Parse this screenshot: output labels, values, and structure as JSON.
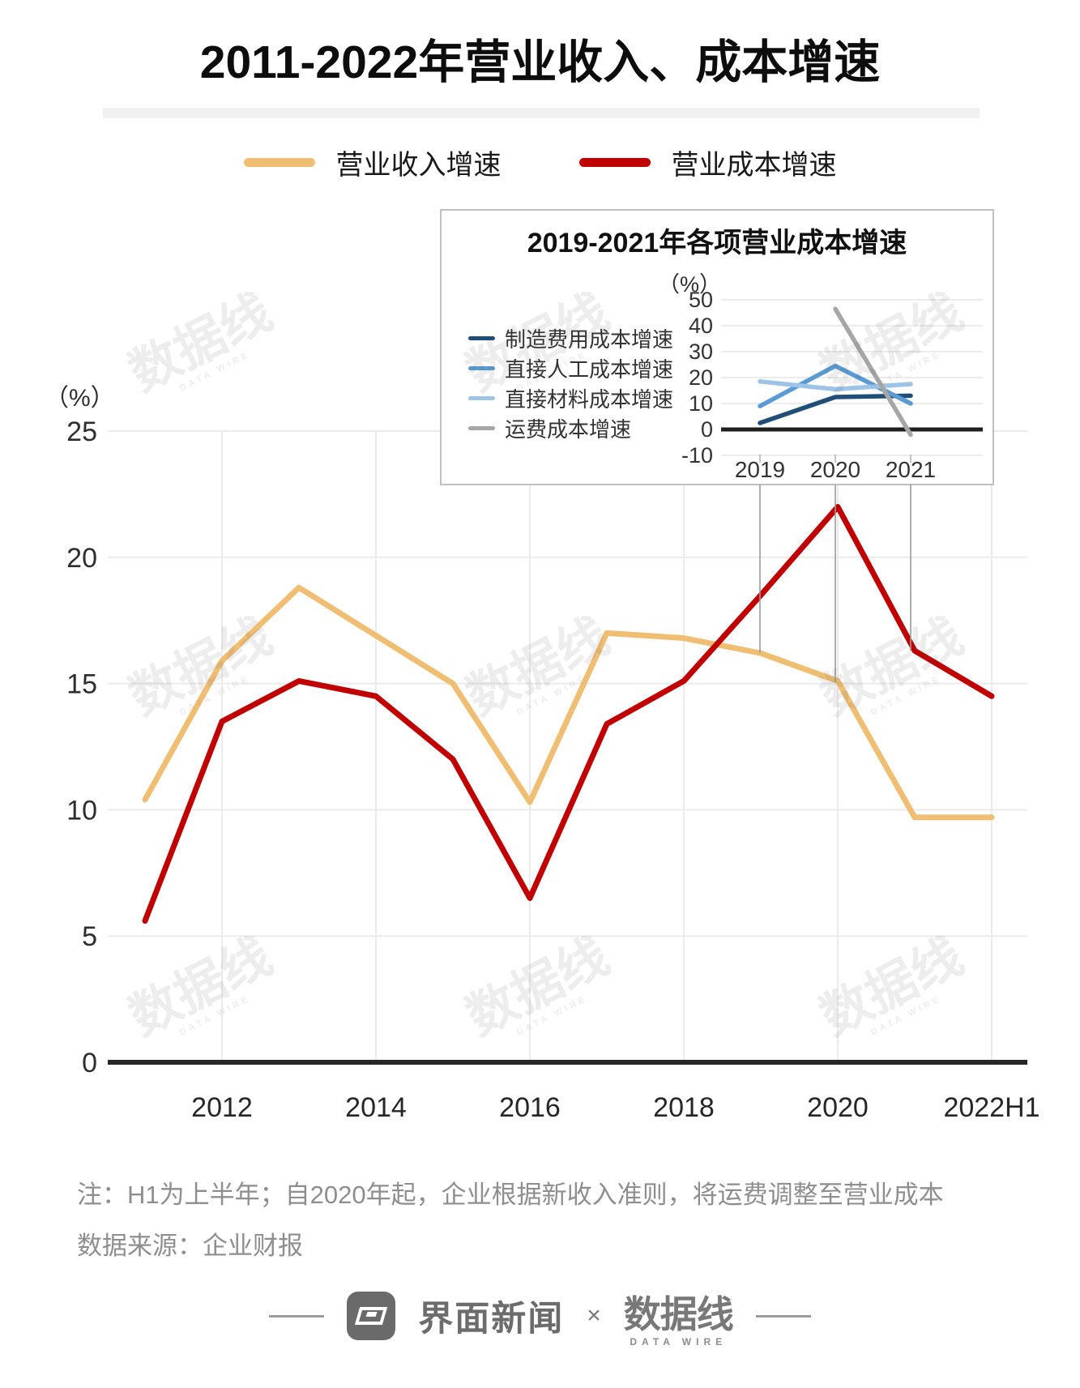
{
  "page": {
    "title": "2011-2022年营业收入、成本增速"
  },
  "main_legend": [
    {
      "label": "营业收入增速",
      "color": "#F0BE73"
    },
    {
      "label": "营业成本增速",
      "color": "#C00000"
    }
  ],
  "notes": {
    "line1": "注：H1为上半年；自2020年起，企业根据新收入准则，将运费调整至营业成本",
    "line2": "数据来源：企业财报"
  },
  "footer": {
    "brand1": "界面新闻",
    "separator": "×",
    "brand2": "数据线",
    "brand2_caption": "DATA WIRE"
  },
  "watermark": {
    "text": "数据线",
    "caption": "DATA WIRE"
  },
  "chart_data": [
    {
      "id": "main",
      "type": "line",
      "title": "2011-2022年营业收入、成本增速",
      "unit_label": "（%）",
      "categories": [
        "2011",
        "2012",
        "2013",
        "2014",
        "2015",
        "2016",
        "2017",
        "2018",
        "2019",
        "2020",
        "2021",
        "2022H1"
      ],
      "xtick_labels": [
        "2012",
        "2014",
        "2016",
        "2018",
        "2020",
        "2022H1"
      ],
      "yticks": [
        0,
        5,
        10,
        15,
        20,
        25
      ],
      "ylim": [
        0,
        25
      ],
      "grid": true,
      "legend_position": "top",
      "series": [
        {
          "name": "营业收入增速",
          "color": "#F0BE73",
          "values": [
            10.4,
            15.9,
            18.8,
            16.9,
            15.0,
            10.3,
            17.0,
            16.8,
            16.2,
            15.1,
            9.7,
            9.7
          ]
        },
        {
          "name": "营业成本增速",
          "color": "#C00000",
          "values": [
            5.6,
            13.5,
            15.1,
            14.5,
            12.0,
            6.5,
            13.4,
            15.1,
            18.5,
            22.0,
            16.3,
            14.5
          ]
        }
      ]
    },
    {
      "id": "inset",
      "type": "line",
      "title": "2019-2021年各项营业成本增速",
      "unit_label": "（%）",
      "categories": [
        "2019",
        "2020",
        "2021"
      ],
      "yticks": [
        -10,
        0,
        10,
        20,
        30,
        40,
        50
      ],
      "ylim": [
        -10,
        50
      ],
      "grid": true,
      "legend_position": "left",
      "series": [
        {
          "name": "制造费用成本增速",
          "color": "#1F4E79",
          "values": [
            2.5,
            12.5,
            13.0
          ]
        },
        {
          "name": "直接人工成本增速",
          "color": "#5B9BD5",
          "values": [
            9.0,
            24.5,
            10.0
          ]
        },
        {
          "name": "直接材料成本增速",
          "color": "#9DC3E6",
          "values": [
            18.5,
            15.5,
            17.5
          ]
        },
        {
          "name": "运费成本增速",
          "color": "#A6A6A6",
          "values": [
            null,
            46.5,
            -2.0
          ]
        }
      ]
    }
  ]
}
